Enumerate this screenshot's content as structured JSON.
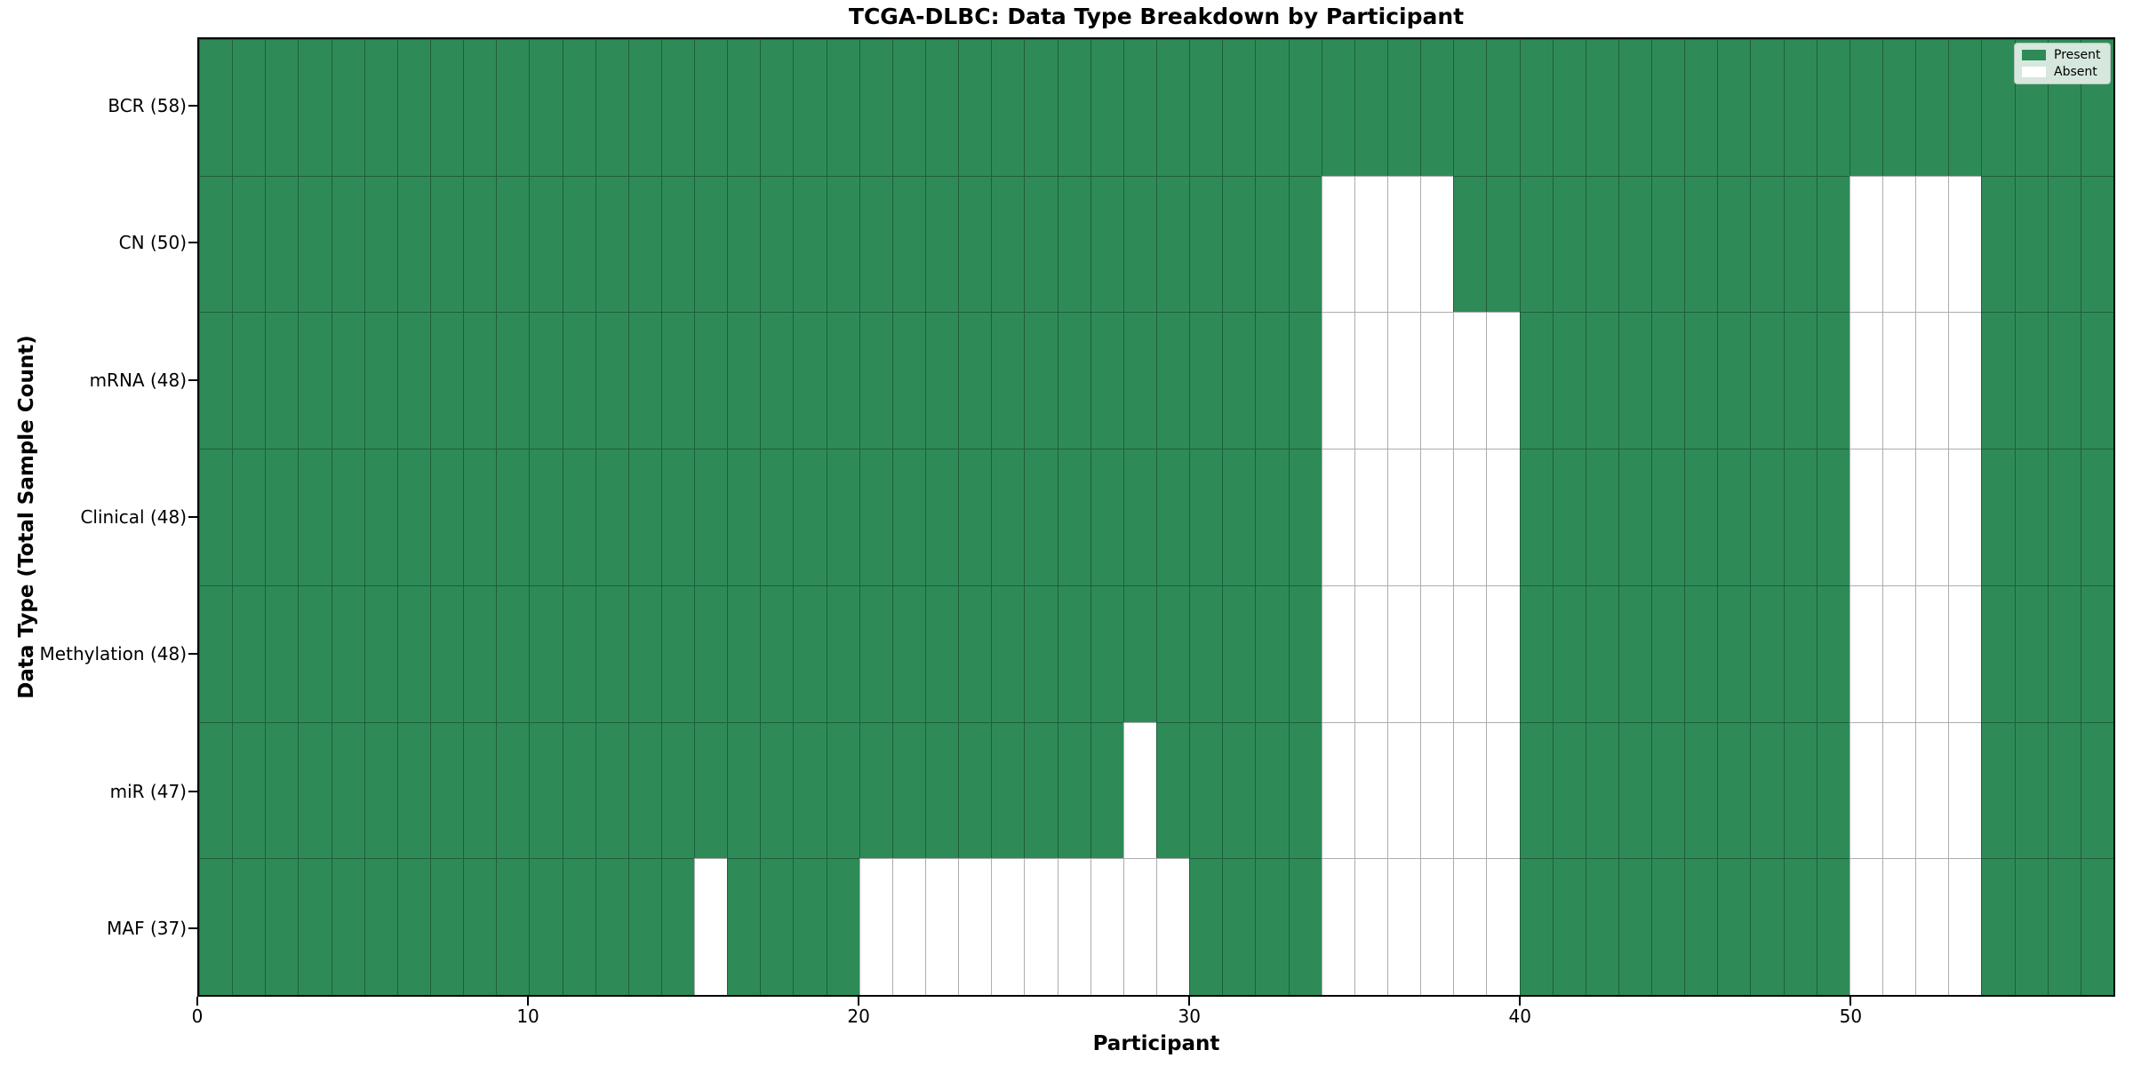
{
  "chart_data": {
    "type": "heatmap",
    "title": "TCGA-DLBC: Data Type Breakdown by Participant",
    "xlabel": "Participant",
    "ylabel": "Data Type (Total Sample Count)",
    "x_ticks": [
      0,
      10,
      20,
      30,
      40,
      50
    ],
    "x_range": [
      0,
      58
    ],
    "n_participants": 58,
    "grid": true,
    "legend_position": "upper right",
    "rows": [
      {
        "label": "BCR (58)",
        "data_type": "BCR",
        "total_samples": 58,
        "absent_participants": []
      },
      {
        "label": "CN (50)",
        "data_type": "CN",
        "total_samples": 50,
        "absent_participants": [
          34,
          35,
          36,
          37,
          50,
          51,
          52,
          53
        ]
      },
      {
        "label": "mRNA (48)",
        "data_type": "mRNA",
        "total_samples": 48,
        "absent_participants": [
          34,
          35,
          36,
          37,
          38,
          39,
          50,
          51,
          52,
          53
        ]
      },
      {
        "label": "Clinical (48)",
        "data_type": "Clinical",
        "total_samples": 48,
        "absent_participants": [
          34,
          35,
          36,
          37,
          38,
          39,
          50,
          51,
          52,
          53
        ]
      },
      {
        "label": "Methylation (48)",
        "data_type": "Methylation",
        "total_samples": 48,
        "absent_participants": [
          34,
          35,
          36,
          37,
          38,
          39,
          50,
          51,
          52,
          53
        ]
      },
      {
        "label": "miR (47)",
        "data_type": "miR",
        "total_samples": 47,
        "absent_participants": [
          28,
          34,
          35,
          36,
          37,
          38,
          39,
          50,
          51,
          52,
          53
        ]
      },
      {
        "label": "MAF (37)",
        "data_type": "MAF",
        "total_samples": 37,
        "absent_participants": [
          15,
          20,
          21,
          22,
          23,
          24,
          25,
          26,
          27,
          28,
          29,
          34,
          35,
          36,
          37,
          38,
          39,
          50,
          51,
          52,
          53
        ]
      }
    ],
    "legend": [
      {
        "label": "Present",
        "color": "#2e8b57"
      },
      {
        "label": "Absent",
        "color": "#ffffff"
      }
    ],
    "colors": {
      "present": "#2e8b57",
      "absent": "#ffffff",
      "gridline": "rgba(0,0,0,0.32)",
      "spine": "#000000",
      "legend_bg": "#d6e7dd"
    }
  }
}
